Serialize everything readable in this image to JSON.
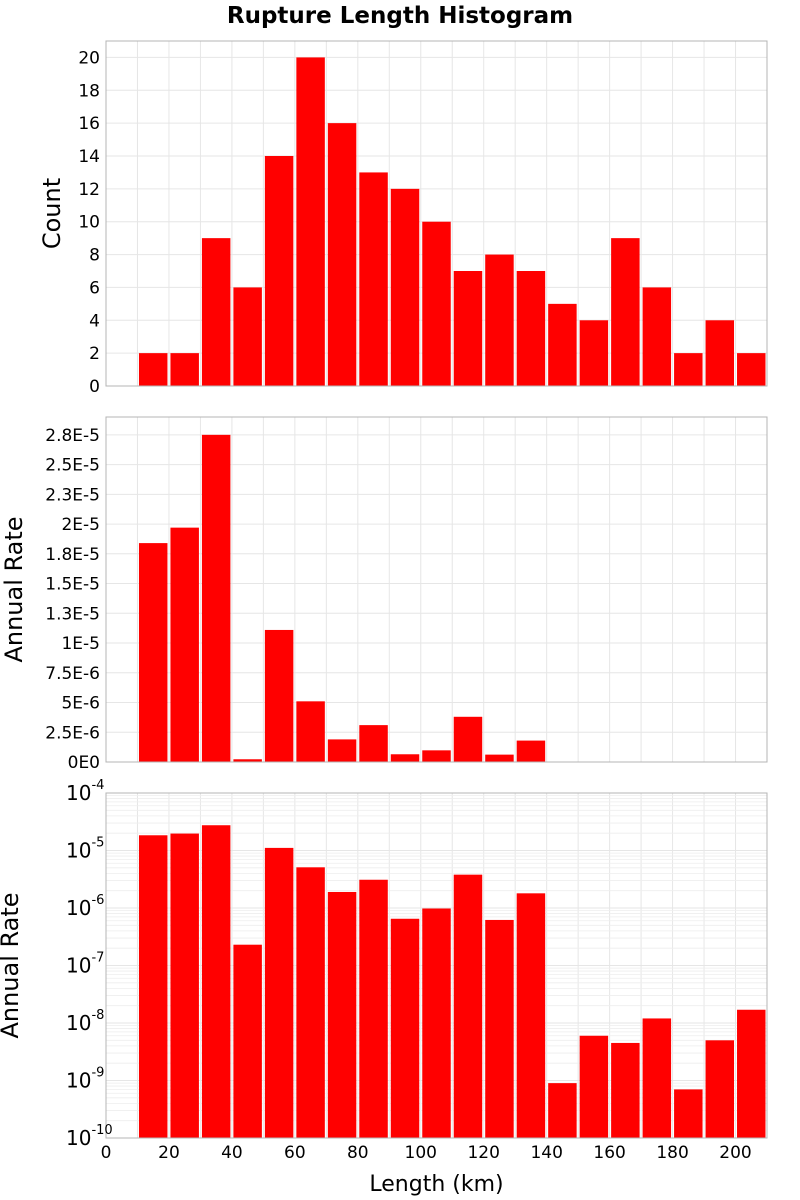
{
  "title": "Rupture Length Histogram",
  "colors": {
    "bar": "#ff0000",
    "grid": "#e6e6e6",
    "frame": "#b4b4b4"
  },
  "chart_data": [
    {
      "type": "bar",
      "panel": "count",
      "ylabel": "Count",
      "xlim": [
        0,
        210
      ],
      "ylim": [
        0,
        21
      ],
      "yticks": [
        0,
        2,
        4,
        6,
        8,
        10,
        12,
        14,
        16,
        18,
        20
      ],
      "ytick_labels": [
        "0",
        "2",
        "4",
        "6",
        "8",
        "10",
        "12",
        "14",
        "16",
        "18",
        "20"
      ],
      "bin_width": 10,
      "x": [
        15,
        25,
        35,
        45,
        55,
        65,
        75,
        85,
        95,
        105,
        115,
        125,
        135,
        145,
        155,
        165,
        175,
        185,
        195,
        205
      ],
      "values": [
        2,
        2,
        9,
        6,
        14,
        20,
        16,
        13,
        12,
        10,
        7,
        8,
        7,
        5,
        4,
        9,
        6,
        2,
        4,
        2
      ],
      "grid": true
    },
    {
      "type": "bar",
      "panel": "rate-linear",
      "ylabel": "Annual Rate",
      "xlim": [
        0,
        210
      ],
      "ylim": [
        0,
        2.9e-05
      ],
      "yticks": [
        0,
        2.5e-06,
        5e-06,
        7.5e-06,
        1e-05,
        1.25e-05,
        1.5e-05,
        1.75e-05,
        2e-05,
        2.25e-05,
        2.5e-05,
        2.75e-05
      ],
      "ytick_labels": [
        "0E0",
        "2.5E-6",
        "5E-6",
        "7.5E-6",
        "1E-5",
        "1.3E-5",
        "1.5E-5",
        "1.8E-5",
        "2E-5",
        "2.3E-5",
        "2.5E-5",
        "2.8E-5"
      ],
      "bin_width": 10,
      "x": [
        15,
        25,
        35,
        45,
        55,
        65,
        75,
        85,
        95,
        105,
        115,
        125,
        135,
        145,
        155,
        165,
        175,
        185,
        195,
        205
      ],
      "values": [
        1.84e-05,
        1.97e-05,
        2.75e-05,
        2.3e-07,
        1.11e-05,
        5.1e-06,
        1.9e-06,
        3.1e-06,
        6.5e-07,
        9.8e-07,
        3.8e-06,
        6.2e-07,
        1.8e-06,
        9e-10,
        6e-09,
        4.5e-09,
        1.2e-08,
        7e-10,
        5e-09,
        1.7e-08
      ],
      "grid": true
    },
    {
      "type": "bar",
      "panel": "rate-log",
      "ylabel": "Annual Rate",
      "xlabel": "Length (km)",
      "xlim": [
        0,
        210
      ],
      "yscale": "log",
      "ylim": [
        1e-10,
        0.0001
      ],
      "yticks": [
        -10,
        -9,
        -8,
        -7,
        -6,
        -5,
        -4
      ],
      "ytick_base": "10",
      "ytick_exponents": [
        "-10",
        "-9",
        "-8",
        "-7",
        "-6",
        "-5",
        "-4"
      ],
      "xticks": [
        0,
        20,
        40,
        60,
        80,
        100,
        120,
        140,
        160,
        180,
        200
      ],
      "xtick_labels": [
        "0",
        "20",
        "40",
        "60",
        "80",
        "100",
        "120",
        "140",
        "160",
        "180",
        "200"
      ],
      "bin_width": 10,
      "x": [
        15,
        25,
        35,
        45,
        55,
        65,
        75,
        85,
        95,
        105,
        115,
        125,
        135,
        145,
        155,
        165,
        175,
        185,
        195,
        205
      ],
      "values": [
        1.84e-05,
        1.97e-05,
        2.75e-05,
        2.3e-07,
        1.11e-05,
        5.1e-06,
        1.9e-06,
        3.1e-06,
        6.5e-07,
        9.8e-07,
        3.8e-06,
        6.2e-07,
        1.8e-06,
        9e-10,
        6e-09,
        4.5e-09,
        1.2e-08,
        7e-10,
        5e-09,
        1.7e-08
      ],
      "grid": true
    }
  ]
}
